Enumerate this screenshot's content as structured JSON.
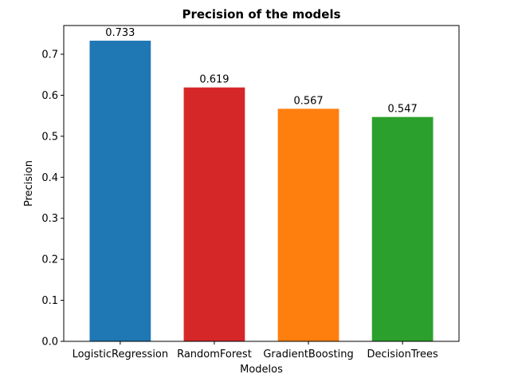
{
  "chart_data": {
    "type": "bar",
    "title": "Precision of the models",
    "xlabel": "Modelos",
    "ylabel": "Precision",
    "categories": [
      "LogisticRegression",
      "RandomForest",
      "GradientBoosting",
      "DecisionTrees"
    ],
    "values": [
      0.733,
      0.619,
      0.567,
      0.547
    ],
    "value_labels": [
      "0.733",
      "0.619",
      "0.567",
      "0.547"
    ],
    "colors": [
      "#1f77b4",
      "#d62728",
      "#ff7f0e",
      "#2ca02c"
    ],
    "ylim": [
      0,
      0.77
    ],
    "yticks": [
      0.0,
      0.1,
      0.2,
      0.3,
      0.4,
      0.5,
      0.6,
      0.7
    ],
    "ytick_labels": [
      "0.0",
      "0.1",
      "0.2",
      "0.3",
      "0.4",
      "0.5",
      "0.6",
      "0.7"
    ],
    "grid": false,
    "legend": "none"
  }
}
